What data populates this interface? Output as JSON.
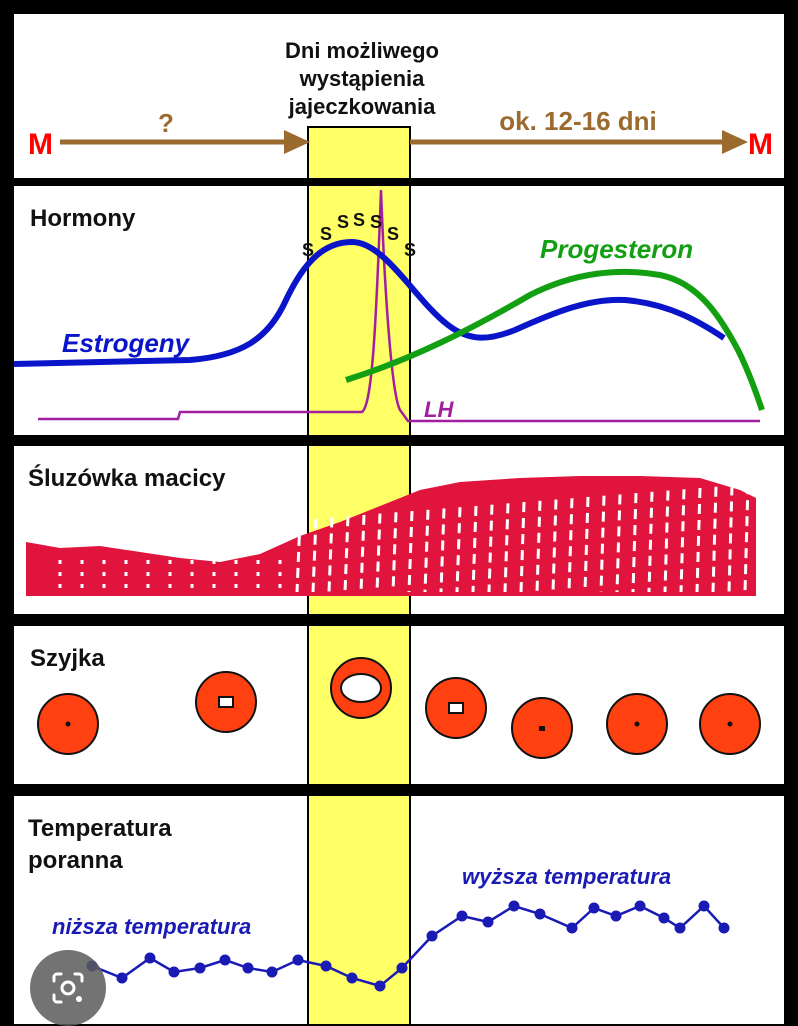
{
  "header": {
    "title_line1": "Dni możliwego",
    "title_line2": "wystąpienia",
    "title_line3": "jajeczkowania",
    "marker_start": "M",
    "marker_end": "M",
    "unknown_phase": "?",
    "luteal_phase": "ok. 12-16 dni"
  },
  "panels": {
    "hormones": {
      "title": "Hormony",
      "estrogen_label": "Estrogeny",
      "progesterone_label": "Progesteron",
      "lh_label": "LH",
      "s_marks": [
        "S",
        "S",
        "S",
        "S",
        "S",
        "S",
        "S"
      ]
    },
    "endometrium": {
      "title": "Śluzówka macicy"
    },
    "cervix": {
      "title": "Szyjka"
    },
    "temperature": {
      "title_line1": "Temperatura",
      "title_line2": "poranna",
      "lower_label": "niższa temperatura",
      "higher_label": "wyższa temperatura"
    }
  },
  "colors": {
    "ovulation_band": "#ffff66",
    "estrogen": "#0a14c8",
    "progesterone": "#12a012",
    "lh": "#a020a0",
    "endometrium": "#e0143c",
    "cervix": "#ff4010",
    "temperature": "#1a1ab4",
    "timeline_arrow": "#9b6a2e",
    "marker": "#ff0000"
  },
  "overlay": {
    "icon": "lens-icon"
  }
}
